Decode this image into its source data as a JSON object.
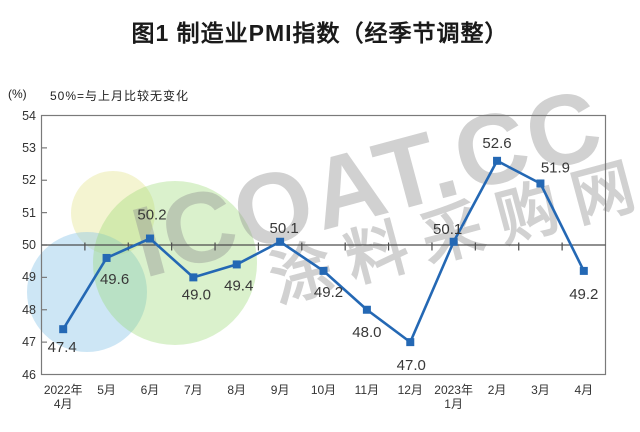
{
  "figure": {
    "title": "图1 制造业PMI指数（经季节调整）",
    "unit_label": "(%)",
    "note": "50%=与上月比较无变化"
  },
  "watermark": {
    "latin": "ICOAT.CC",
    "cjk": "涂料采购网"
  },
  "colors": {
    "line": "#2468b4",
    "marker": "#2468b4",
    "border": "#7a7a7a",
    "baseline": "#4d4d4d",
    "data_label": "#383838",
    "watermark": "rgba(145,145,145,0.42)",
    "circle_blue": "rgba(135,196,232,0.42)",
    "circle_green": "rgba(150,214,110,0.35)",
    "circle_yellow": "rgba(228,228,140,0.40)"
  },
  "chart_data": {
    "type": "line",
    "title": "图1 制造业PMI指数（经季节调整）",
    "annotation": "50%=与上月比较无变化",
    "ylabel": "(%)",
    "categories": [
      "2022年4月",
      "5月",
      "6月",
      "7月",
      "8月",
      "9月",
      "10月",
      "11月",
      "12月",
      "2023年1月",
      "2月",
      "3月",
      "4月"
    ],
    "series": [
      {
        "name": "制造业PMI指数（经季节调整）",
        "values": [
          47.4,
          49.6,
          50.2,
          49.0,
          49.4,
          50.1,
          49.2,
          48.0,
          47.0,
          50.1,
          52.6,
          51.9,
          49.2
        ]
      }
    ],
    "ylim": [
      46,
      54
    ],
    "ytick_step": 1,
    "reference_line": 50,
    "grid": false,
    "legend_position": "none",
    "marker": "square"
  }
}
